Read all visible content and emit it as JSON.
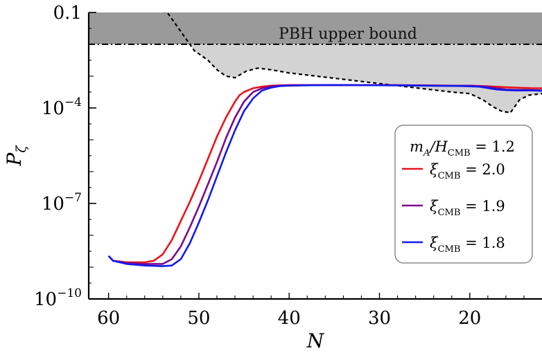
{
  "chart_data": {
    "type": "line",
    "xlabel": "N",
    "ylabel": "P_ζ",
    "xlim": [
      62.2,
      12.0
    ],
    "ylim": [
      -10,
      -1
    ],
    "y_scale": "log",
    "x_ticks": [
      60,
      50,
      40,
      30,
      20
    ],
    "y_ticks": [
      {
        "value": -1,
        "label": "0.1",
        "base": "",
        "exp": ""
      },
      {
        "value": -4,
        "label": "",
        "base": "10",
        "exp": "−4"
      },
      {
        "value": -7,
        "label": "",
        "base": "10",
        "exp": "−7"
      },
      {
        "value": -10,
        "label": "",
        "base": "10",
        "exp": "−10"
      }
    ],
    "regions": {
      "pbh_bound": {
        "label": "PBH upper bound",
        "log10_value": -2.0,
        "color": "#9a9a9a"
      },
      "shaded_bound_color": "#d3d3d3",
      "dashed_boundary": {
        "x": [
          62.2,
          53.5,
          52.0,
          50.5,
          49.0,
          48.0,
          47.0,
          46.0,
          44.8,
          43.5,
          42.0,
          40.0,
          37.0,
          34.0,
          31.0,
          28.0,
          25.0,
          22.0,
          20.0,
          18.5,
          17.5,
          16.5,
          15.5,
          15.0,
          14.5,
          13.5,
          12.0
        ],
        "log10_values": [
          -0.5,
          -1.0,
          -1.6,
          -2.2,
          -2.5,
          -2.8,
          -3.0,
          -3.05,
          -2.85,
          -2.75,
          -2.8,
          -2.9,
          -3.0,
          -3.1,
          -3.2,
          -3.3,
          -3.4,
          -3.5,
          -3.55,
          -3.75,
          -3.95,
          -4.1,
          -4.15,
          -3.95,
          -3.75,
          -3.6,
          -3.55
        ]
      }
    },
    "legend": {
      "title_lhs": "m",
      "title_lhs_sub": "A",
      "title_mid": "/H",
      "title_mid_sub": "CMB",
      "title_rhs": "= 1.2",
      "position": "right"
    },
    "series": [
      {
        "name_sym": "ξ",
        "name_sub": "CMB",
        "name_val": "= 2.0",
        "color": "#e8141c",
        "x": [
          60.0,
          59.5,
          58.0,
          56.0,
          55.0,
          54.0,
          53.0,
          52.0,
          51.0,
          50.0,
          49.0,
          48.0,
          47.0,
          46.0,
          45.5,
          45.0,
          44.0,
          43.0,
          42.0,
          40.0,
          37.0,
          34.0,
          30.0,
          26.0,
          22.0,
          20.0,
          18.0,
          16.0,
          15.0,
          14.0,
          13.0,
          12.0
        ],
        "log10_values": [
          -8.65,
          -8.8,
          -8.85,
          -8.85,
          -8.8,
          -8.6,
          -8.15,
          -7.55,
          -6.95,
          -6.3,
          -5.6,
          -4.9,
          -4.3,
          -3.8,
          -3.6,
          -3.5,
          -3.38,
          -3.33,
          -3.3,
          -3.28,
          -3.28,
          -3.28,
          -3.28,
          -3.29,
          -3.3,
          -3.3,
          -3.32,
          -3.35,
          -3.36,
          -3.37,
          -3.38,
          -3.38
        ]
      },
      {
        "name_sym": "ξ",
        "name_sub": "CMB",
        "name_val": "= 1.9",
        "color": "#7a0a8c",
        "x": [
          60.0,
          59.5,
          58.0,
          56.0,
          54.0,
          53.0,
          52.0,
          51.0,
          50.0,
          49.0,
          48.0,
          47.0,
          46.0,
          45.0,
          44.0,
          43.0,
          42.0,
          41.0,
          40.0,
          37.0,
          34.0,
          30.0,
          26.0,
          22.0,
          20.0,
          18.0,
          17.0,
          16.0,
          15.0,
          14.0,
          13.0,
          12.0
        ],
        "log10_values": [
          -8.65,
          -8.8,
          -8.87,
          -8.9,
          -8.9,
          -8.75,
          -8.35,
          -7.75,
          -7.1,
          -6.4,
          -5.7,
          -4.95,
          -4.3,
          -3.8,
          -3.5,
          -3.38,
          -3.32,
          -3.3,
          -3.29,
          -3.28,
          -3.28,
          -3.28,
          -3.29,
          -3.3,
          -3.3,
          -3.33,
          -3.38,
          -3.42,
          -3.43,
          -3.43,
          -3.44,
          -3.45
        ]
      },
      {
        "name_sym": "ξ",
        "name_sub": "CMB",
        "name_val": "= 1.8",
        "color": "#1419ee",
        "x": [
          60.0,
          59.5,
          58.0,
          56.0,
          54.0,
          53.0,
          52.0,
          51.0,
          50.0,
          49.0,
          48.0,
          47.0,
          46.0,
          45.0,
          44.0,
          43.0,
          42.0,
          41.0,
          40.0,
          38.0,
          36.0,
          33.0,
          29.0,
          25.0,
          21.0,
          19.0,
          17.0,
          16.0,
          15.0,
          14.0,
          13.0,
          12.0
        ],
        "log10_values": [
          -8.65,
          -8.8,
          -8.9,
          -8.95,
          -8.97,
          -8.95,
          -8.75,
          -8.25,
          -7.6,
          -6.9,
          -6.15,
          -5.4,
          -4.7,
          -4.1,
          -3.7,
          -3.45,
          -3.36,
          -3.31,
          -3.3,
          -3.29,
          -3.28,
          -3.28,
          -3.29,
          -3.3,
          -3.31,
          -3.33,
          -3.42,
          -3.44,
          -3.45,
          -3.45,
          -3.45,
          -3.46
        ]
      }
    ]
  }
}
